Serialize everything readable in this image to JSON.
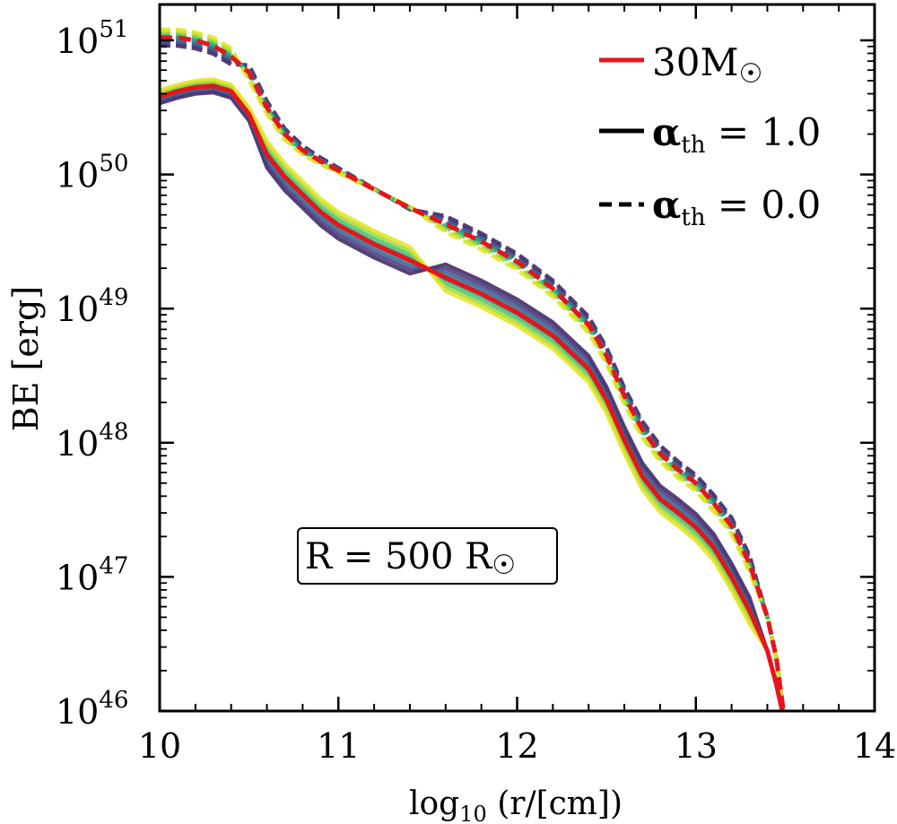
{
  "chart_data": {
    "type": "line",
    "title": "",
    "xlabel": "log",
    "xlabel_sub": "10",
    "xlabel_rest": " (r/[cm])",
    "ylabel": "BE [erg]",
    "xlim": [
      10,
      14
    ],
    "ylim_exponents": [
      46,
      51
    ],
    "yscale": "log",
    "x_ticks": [
      {
        "value": 10,
        "label": "10"
      },
      {
        "value": 11,
        "label": "11"
      },
      {
        "value": 12,
        "label": "12"
      },
      {
        "value": 13,
        "label": "13"
      },
      {
        "value": 14,
        "label": "14"
      }
    ],
    "y_ticks": [
      {
        "exp": 46,
        "base": "10",
        "sup": "46"
      },
      {
        "exp": 47,
        "base": "10",
        "sup": "47"
      },
      {
        "exp": 48,
        "base": "10",
        "sup": "48"
      },
      {
        "exp": 49,
        "base": "10",
        "sup": "49"
      },
      {
        "exp": 50,
        "base": "10",
        "sup": "50"
      },
      {
        "exp": 51,
        "base": "10",
        "sup": "51"
      }
    ],
    "annotation": {
      "text": "R = 500 R",
      "symbol": "☉"
    },
    "legend": [
      {
        "label": "30M",
        "symbol": "☉",
        "style": "solid",
        "color": "#e8141c"
      },
      {
        "label": "α",
        "sub": "th",
        "rest": " = 1.0",
        "style": "solid",
        "color": "#000000"
      },
      {
        "label": "α",
        "sub": "th",
        "rest": " = 0.0",
        "style": "dashed",
        "color": "#000000"
      }
    ],
    "colors": [
      "#3b1f5c",
      "#46337e",
      "#365c8d",
      "#277f8e",
      "#1fa187",
      "#4ac16d",
      "#9fda3a",
      "#e3e41a"
    ],
    "red_color": "#e8141c",
    "series": [
      {
        "name": "30Msun α_th=1.0",
        "style": "solid",
        "color": "#e8141c",
        "x": [
          10,
          10.1,
          10.2,
          10.3,
          10.4,
          10.5,
          10.6,
          10.7,
          10.8,
          10.9,
          11,
          11.2,
          11.4,
          11.6,
          11.8,
          12,
          12.2,
          12.4,
          12.5,
          12.6,
          12.7,
          12.8,
          12.9,
          13,
          13.1,
          13.2,
          13.3,
          13.4,
          13.45,
          13.5
        ],
        "y": [
          50.58,
          50.62,
          50.65,
          50.66,
          50.62,
          50.45,
          50.15,
          49.98,
          49.85,
          49.72,
          49.62,
          49.48,
          49.36,
          49.23,
          49.11,
          48.97,
          48.8,
          48.55,
          48.32,
          48.02,
          47.75,
          47.58,
          47.48,
          47.37,
          47.22,
          47.0,
          46.75,
          46.45,
          46.2,
          45.9
        ]
      },
      {
        "name": "30Msun α_th=0.0",
        "style": "dashed",
        "color": "#e8141c",
        "x": [
          10,
          10.1,
          10.2,
          10.3,
          10.4,
          10.5,
          10.6,
          10.7,
          10.8,
          10.9,
          11,
          11.2,
          11.4,
          11.6,
          11.8,
          12,
          12.2,
          12.4,
          12.5,
          12.6,
          12.7,
          12.8,
          12.9,
          13,
          13.1,
          13.2,
          13.3,
          13.4,
          13.45,
          13.5
        ],
        "y": [
          51.02,
          51.02,
          51.0,
          50.96,
          50.88,
          50.76,
          50.5,
          50.3,
          50.18,
          50.1,
          50.03,
          49.89,
          49.75,
          49.63,
          49.5,
          49.35,
          49.15,
          48.88,
          48.65,
          48.35,
          48.1,
          47.92,
          47.8,
          47.7,
          47.55,
          47.38,
          47.1,
          46.7,
          46.4,
          45.9
        ]
      }
    ]
  }
}
